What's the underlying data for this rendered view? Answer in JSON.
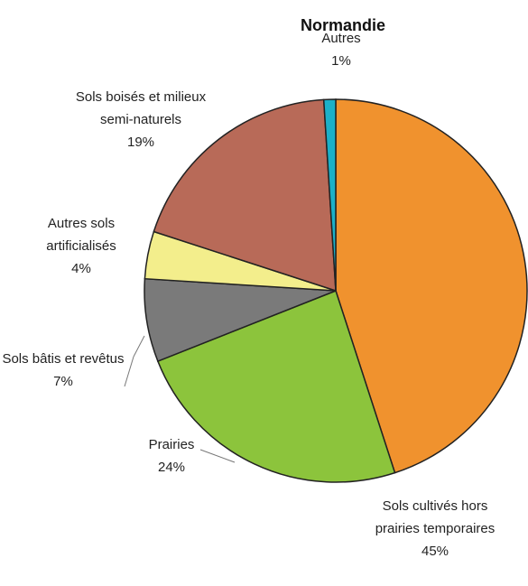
{
  "chart_data": {
    "type": "pie",
    "title": "Normandie",
    "categories": [
      "Sols cultivés hors prairies temporaires",
      "Prairies",
      "Sols bâtis et revêtus",
      "Autres sols artificialisés",
      "Sols boisés et milieux semi-naturels",
      "Autres"
    ],
    "values": [
      45,
      24,
      7,
      4,
      19,
      1
    ],
    "value_labels": [
      "45%",
      "24%",
      "7%",
      "4%",
      "19%",
      "1%"
    ],
    "colors": [
      "#f0922e",
      "#8cc43c",
      "#7a7a7a",
      "#f3ee8c",
      "#b86a58",
      "#1bb0c8"
    ]
  }
}
